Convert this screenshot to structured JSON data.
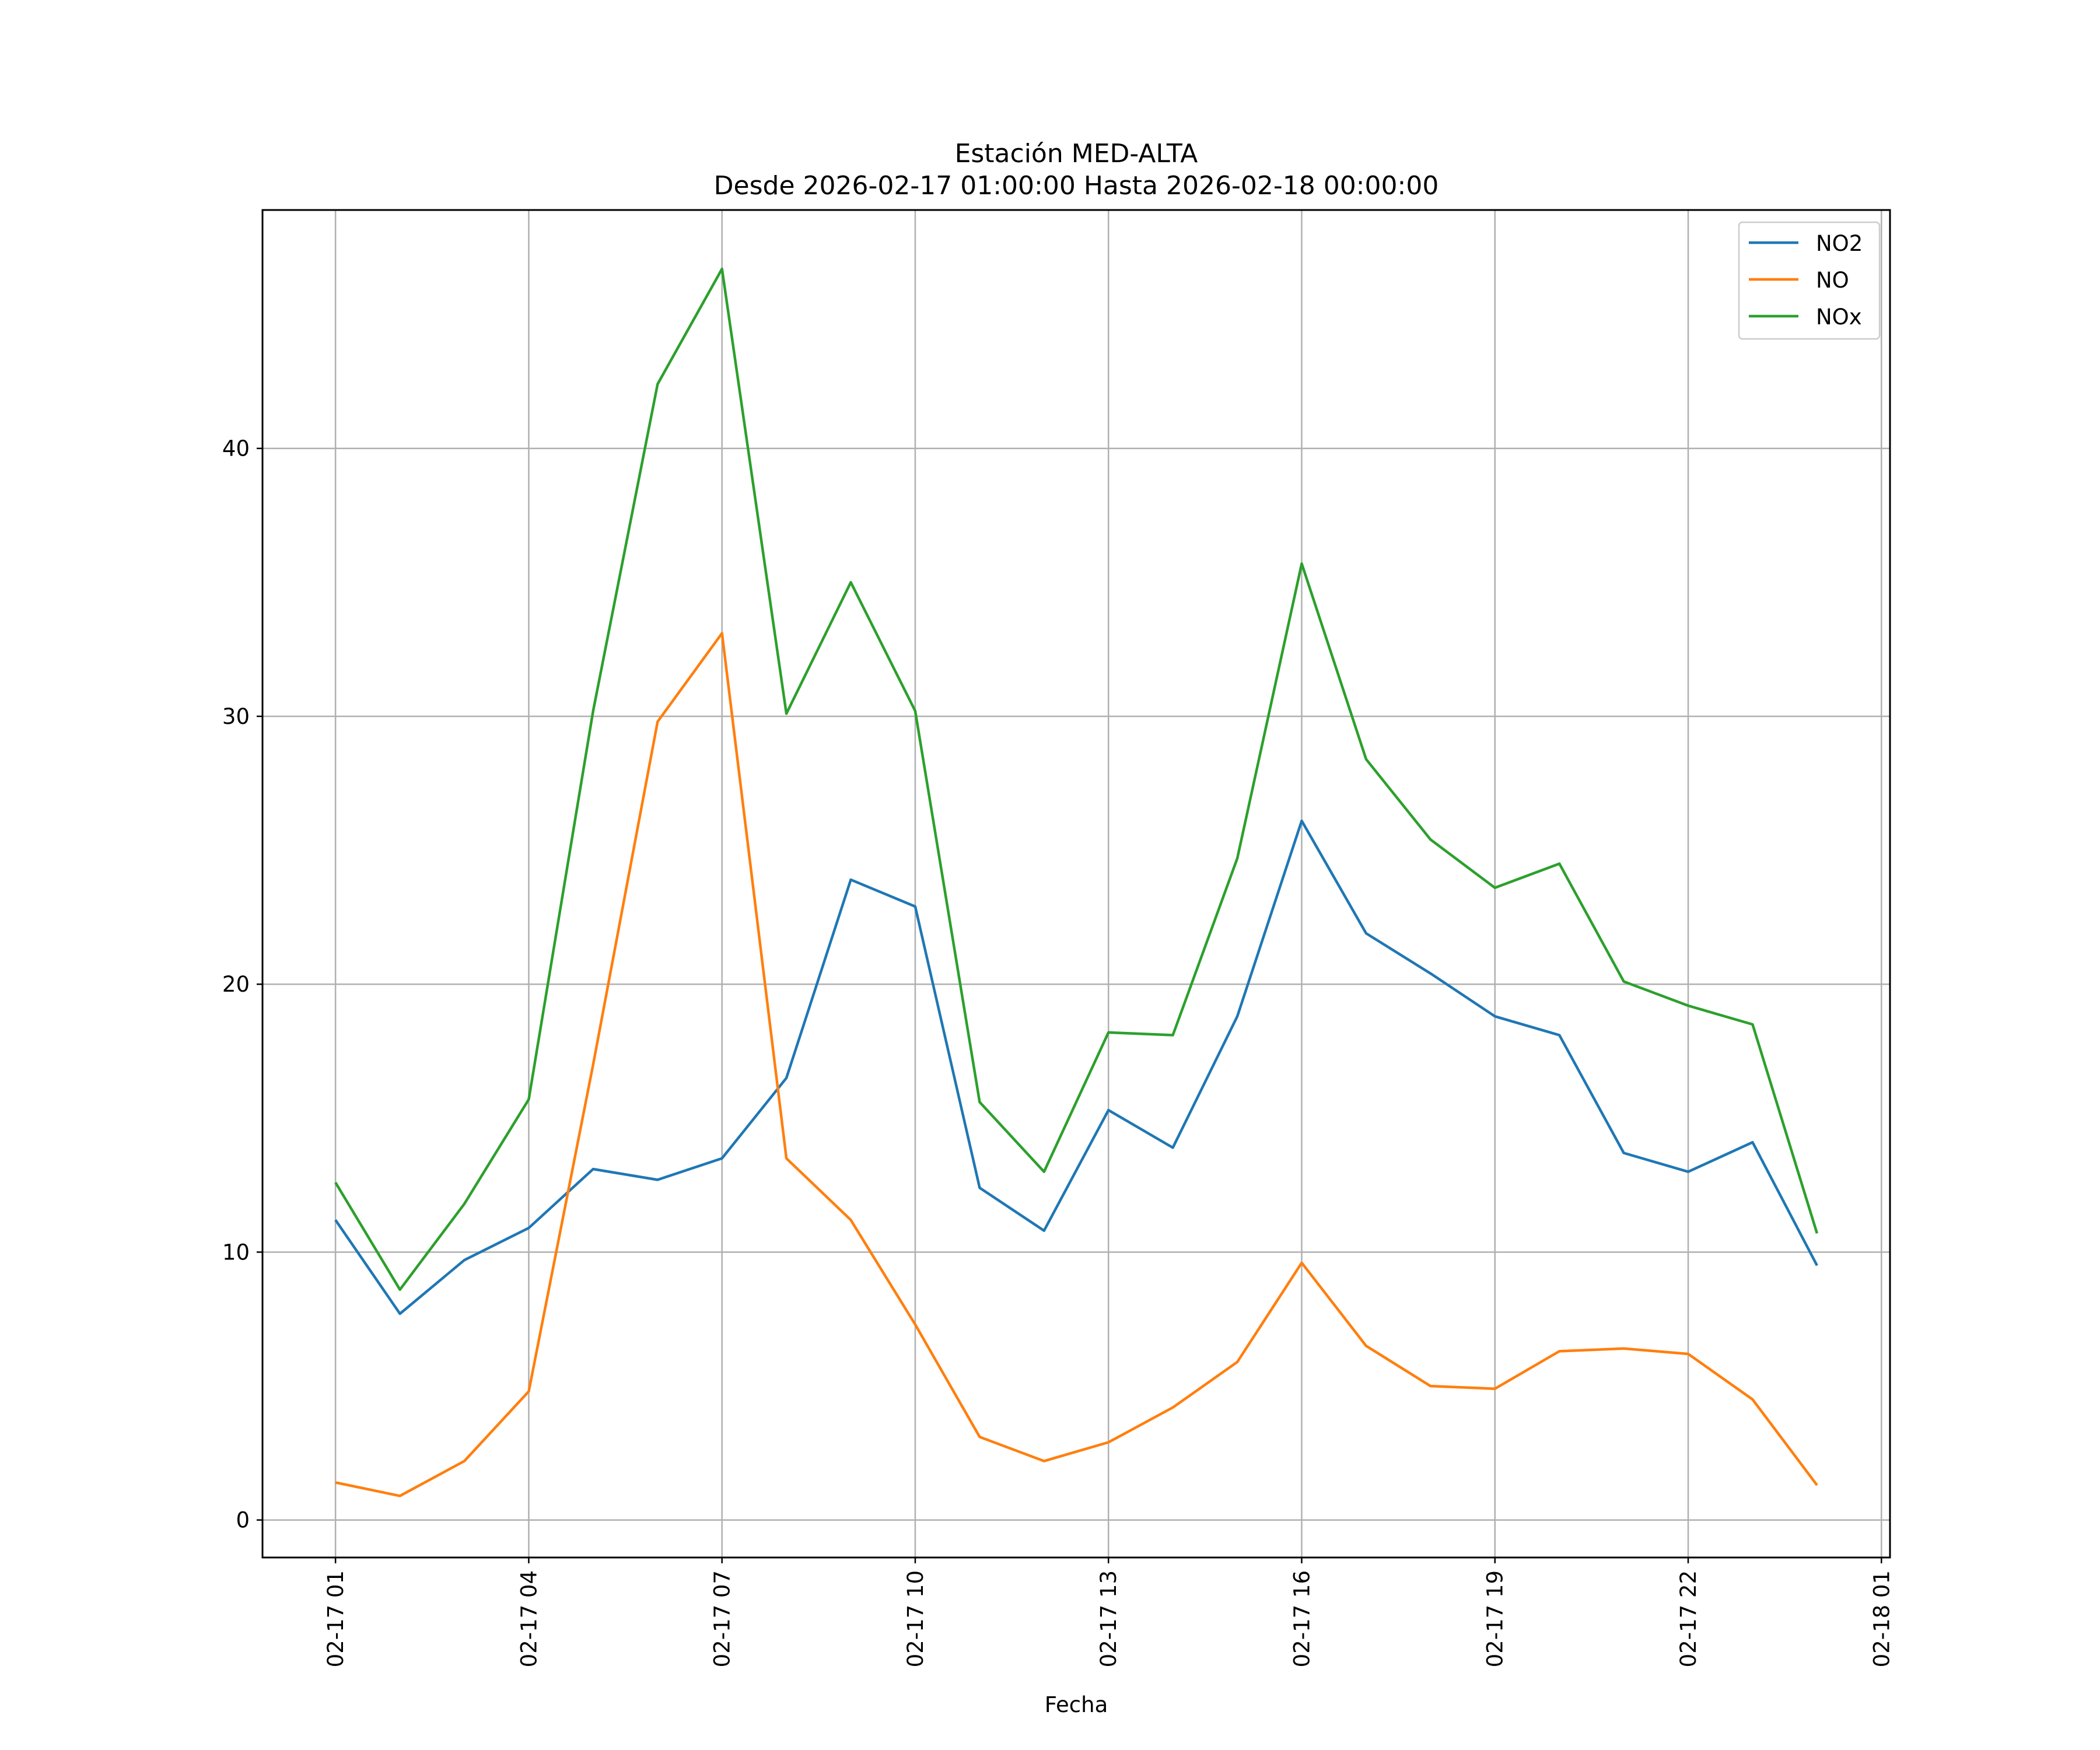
{
  "chart_data": {
    "type": "line",
    "title": "Estación MED-ALTA",
    "subtitle": "Desde 2026-02-17 01:00:00 Hasta 2026-02-18 00:00:00",
    "xlabel": "Fecha",
    "ylabel": "",
    "x": [
      "2026-02-17 01:00",
      "2026-02-17 02:00",
      "2026-02-17 03:00",
      "2026-02-17 04:00",
      "2026-02-17 05:00",
      "2026-02-17 06:00",
      "2026-02-17 07:00",
      "2026-02-17 08:00",
      "2026-02-17 09:00",
      "2026-02-17 10:00",
      "2026-02-17 11:00",
      "2026-02-17 12:00",
      "2026-02-17 13:00",
      "2026-02-17 14:00",
      "2026-02-17 15:00",
      "2026-02-17 16:00",
      "2026-02-17 17:00",
      "2026-02-17 18:00",
      "2026-02-17 19:00",
      "2026-02-17 20:00",
      "2026-02-17 21:00",
      "2026-02-17 22:00",
      "2026-02-17 23:00",
      "2026-02-18 00:00"
    ],
    "xticks": [
      "02-17 01",
      "02-17 04",
      "02-17 07",
      "02-17 10",
      "02-17 13",
      "02-17 16",
      "02-17 19",
      "02-17 22",
      "02-18 01"
    ],
    "xtick_values": [
      "2026-02-17 01:00",
      "2026-02-17 04:00",
      "2026-02-17 07:00",
      "2026-02-17 10:00",
      "2026-02-17 13:00",
      "2026-02-17 16:00",
      "2026-02-17 19:00",
      "2026-02-17 22:00",
      "2026-02-18 01:00"
    ],
    "xlim": [
      "2026-02-16 23:52",
      "2026-02-18 01:08"
    ],
    "yticks": [
      0,
      10,
      20,
      30,
      40
    ],
    "ylim": [
      -1.4,
      48.9
    ],
    "grid": true,
    "legend_position": "top-right",
    "series": [
      {
        "name": "NO2",
        "color": "#1f77b4",
        "values": [
          11.2,
          7.7,
          9.7,
          10.9,
          13.1,
          12.7,
          13.5,
          16.5,
          23.9,
          22.9,
          12.4,
          10.8,
          15.3,
          13.9,
          18.8,
          26.1,
          21.9,
          20.4,
          18.8,
          18.1,
          13.7,
          13.0,
          14.1,
          9.5
        ]
      },
      {
        "name": "NO",
        "color": "#ff7f0e",
        "values": [
          1.4,
          0.9,
          2.2,
          4.8,
          17.0,
          29.8,
          33.1,
          13.5,
          11.2,
          7.3,
          3.1,
          2.2,
          2.9,
          4.2,
          5.9,
          9.6,
          6.5,
          5.0,
          4.9,
          6.3,
          6.4,
          6.2,
          4.5,
          1.3
        ]
      },
      {
        "name": "NOx",
        "color": "#2ca02c",
        "values": [
          12.6,
          8.6,
          11.8,
          15.7,
          30.2,
          42.4,
          46.7,
          30.1,
          35.0,
          30.2,
          15.6,
          13.0,
          18.2,
          18.1,
          24.7,
          35.7,
          28.4,
          25.4,
          23.6,
          24.5,
          20.1,
          19.2,
          18.5,
          10.7
        ]
      }
    ]
  }
}
